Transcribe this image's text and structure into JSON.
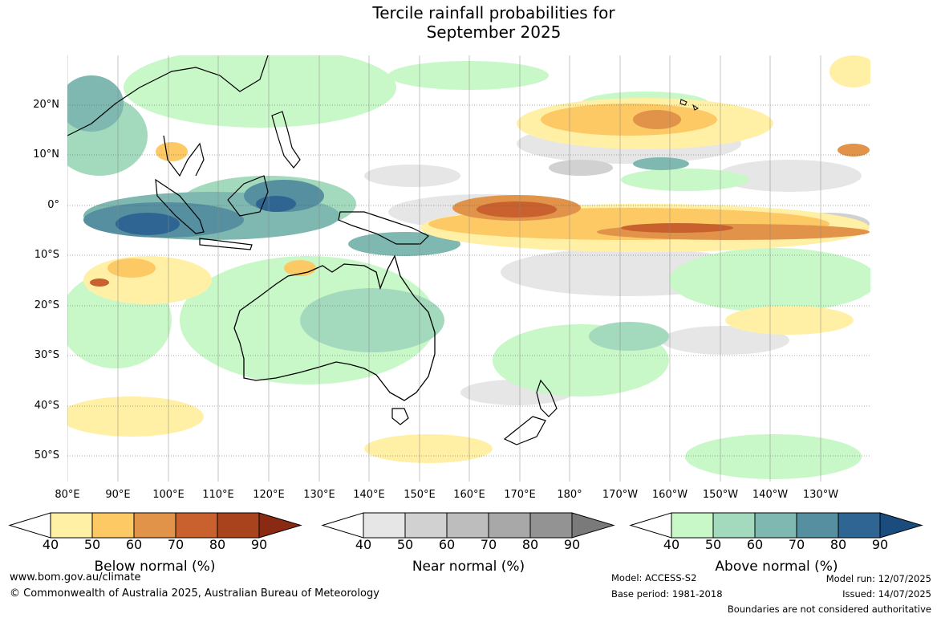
{
  "title": {
    "line1": "Tercile rainfall probabilities for",
    "line2": "September 2025"
  },
  "map": {
    "lat_labels": [
      "20°N",
      "10°N",
      "0°",
      "10°S",
      "20°S",
      "30°S",
      "40°S",
      "50°S"
    ],
    "lon_labels": [
      "80°E",
      "90°E",
      "100°E",
      "110°E",
      "120°E",
      "130°E",
      "140°E",
      "150°E",
      "160°E",
      "170°E",
      "180°",
      "170°W",
      "160°W",
      "150°W",
      "140°W",
      "130°W"
    ],
    "colors": {
      "below": [
        "#fff0a6",
        "#fdc965",
        "#e09349",
        "#c9612f",
        "#a8431e",
        "#8a2a12"
      ],
      "near": [
        "#e6e6e6",
        "#d1d1d1",
        "#bdbdbd",
        "#a8a8a8",
        "#939393",
        "#7a7a7a"
      ],
      "above": [
        "#c8f7c8",
        "#a3d9bd",
        "#7fb8b0",
        "#568f9f",
        "#2e6593",
        "#1a4c7d"
      ]
    }
  },
  "colorbars": [
    {
      "title": "Below normal (%)",
      "ticks": [
        "40",
        "50",
        "60",
        "70",
        "80",
        "90"
      ]
    },
    {
      "title": "Near normal (%)",
      "ticks": [
        "40",
        "50",
        "60",
        "70",
        "80",
        "90"
      ]
    },
    {
      "title": "Above normal (%)",
      "ticks": [
        "40",
        "50",
        "60",
        "70",
        "80",
        "90"
      ]
    }
  ],
  "footer": {
    "url": "www.bom.gov.au/climate",
    "copyright": "© Commonwealth of Australia 2025, Australian Bureau of Meteorology",
    "model": "Model: ACCESS-S2",
    "base_period": "Base period: 1981-2018",
    "model_run": "Model run: 12/07/2025",
    "issued": "Issued: 14/07/2025",
    "disclaimer": "Boundaries are not considered authoritative"
  }
}
